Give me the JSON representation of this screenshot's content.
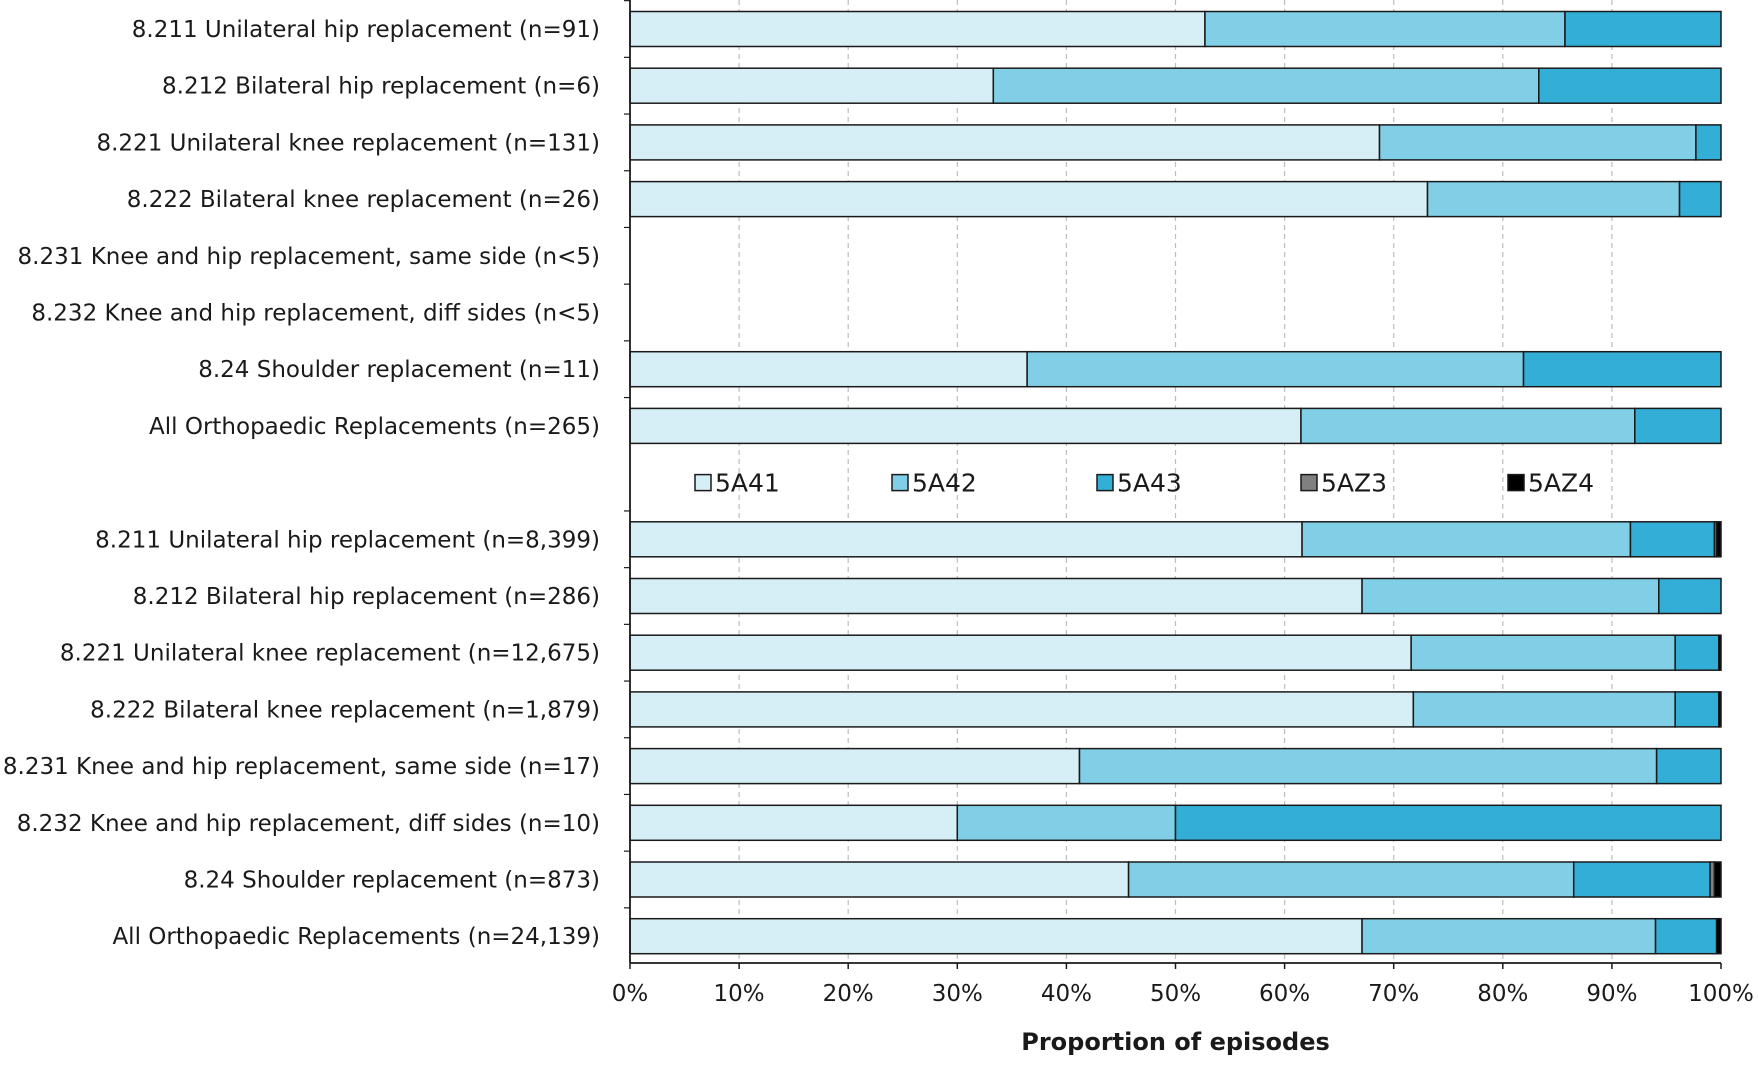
{
  "chart_data": {
    "type": "bar",
    "orientation": "horizontal",
    "stacked": true,
    "xlabel": "Proportion of episodes",
    "xlim": [
      0,
      100
    ],
    "x_ticks": [
      "0%",
      "10%",
      "20%",
      "30%",
      "40%",
      "50%",
      "60%",
      "70%",
      "80%",
      "90%",
      "100%"
    ],
    "grid": "vertical dashed",
    "legend_position": "center, between groups",
    "series": [
      {
        "name": "5A41",
        "color": "#d6eef5"
      },
      {
        "name": "5A42",
        "color": "#80cfe6"
      },
      {
        "name": "5A43",
        "color": "#33aed6"
      },
      {
        "name": "5AZ3",
        "color": "#808080"
      },
      {
        "name": "5AZ4",
        "color": "#000000"
      }
    ],
    "groups": [
      {
        "rows": [
          {
            "label": "8.211 Unilateral hip replacement (n=91)",
            "values": [
              52.7,
              33.0,
              14.3,
              0,
              0
            ]
          },
          {
            "label": "8.212 Bilateral hip replacement (n=6)",
            "values": [
              33.3,
              50.0,
              16.7,
              0,
              0
            ]
          },
          {
            "label": "8.221 Unilateral knee replacement (n=131)",
            "values": [
              68.7,
              29.0,
              2.3,
              0,
              0
            ]
          },
          {
            "label": "8.222 Bilateral knee replacement (n=26)",
            "values": [
              73.1,
              23.1,
              3.8,
              0,
              0
            ]
          },
          {
            "label": "8.231 Knee and hip replacement, same side (n<5)",
            "values": [
              0,
              0,
              0,
              0,
              0
            ]
          },
          {
            "label": "8.232 Knee and hip replacement, diff sides (n<5)",
            "values": [
              0,
              0,
              0,
              0,
              0
            ]
          },
          {
            "label": "8.24 Shoulder replacement (n=11)",
            "values": [
              36.4,
              45.5,
              18.1,
              0,
              0
            ]
          },
          {
            "label": "All Orthopaedic Replacements (n=265)",
            "values": [
              61.5,
              30.6,
              7.9,
              0,
              0
            ]
          }
        ]
      },
      {
        "rows": [
          {
            "label": "8.211 Unilateral hip replacement (n=8,399)",
            "values": [
              61.6,
              30.1,
              7.7,
              0.2,
              0.4
            ]
          },
          {
            "label": "8.212 Bilateral hip replacement (n=286)",
            "values": [
              67.1,
              27.2,
              5.7,
              0,
              0
            ]
          },
          {
            "label": "8.221 Unilateral knee replacement (n=12,675)",
            "values": [
              71.6,
              24.2,
              4.0,
              0,
              0.2
            ]
          },
          {
            "label": "8.222 Bilateral knee replacement (n=1,879)",
            "values": [
              71.8,
              24.0,
              4.0,
              0,
              0.2
            ]
          },
          {
            "label": "8.231 Knee and hip replacement, same side (n=17)",
            "values": [
              41.2,
              52.9,
              5.9,
              0,
              0
            ]
          },
          {
            "label": "8.232 Knee and hip replacement, diff sides (n=10)",
            "values": [
              30.0,
              20.0,
              50.0,
              0,
              0
            ]
          },
          {
            "label": "8.24 Shoulder replacement (n=873)",
            "values": [
              45.7,
              40.8,
              12.5,
              0.4,
              0.6
            ]
          },
          {
            "label": "All Orthopaedic Replacements (n=24,139)",
            "values": [
              67.1,
              26.9,
              5.6,
              0,
              0.4
            ]
          }
        ]
      }
    ]
  }
}
